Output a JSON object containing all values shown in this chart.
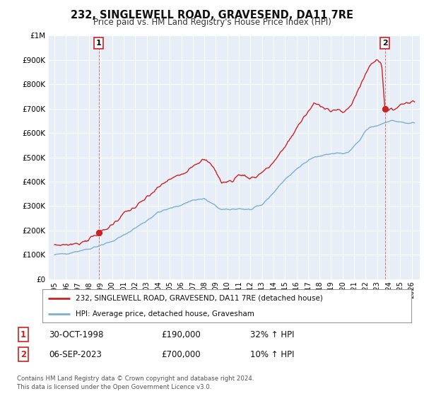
{
  "title": "232, SINGLEWELL ROAD, GRAVESEND, DA11 7RE",
  "subtitle": "Price paid vs. HM Land Registry's House Price Index (HPI)",
  "hpi_color": "#7ab0d4",
  "price_color": "#cc2222",
  "bg_color": "#e8eef8",
  "grid_color": "#ffffff",
  "sale1_x": 1998.83,
  "sale1_y": 190000,
  "sale2_x": 2023.68,
  "sale2_y": 700000,
  "sale1_label": "1",
  "sale2_label": "2",
  "legend_line1": "232, SINGLEWELL ROAD, GRAVESEND, DA11 7RE (detached house)",
  "legend_line2": "HPI: Average price, detached house, Gravesham",
  "table_row1_num": "1",
  "table_row1_date": "30-OCT-1998",
  "table_row1_price": "£190,000",
  "table_row1_hpi": "32% ↑ HPI",
  "table_row2_num": "2",
  "table_row2_date": "06-SEP-2023",
  "table_row2_price": "£700,000",
  "table_row2_hpi": "10% ↑ HPI",
  "footer1": "Contains HM Land Registry data © Crown copyright and database right 2024.",
  "footer2": "This data is licensed under the Open Government Licence v3.0.",
  "yticks": [
    0,
    100000,
    200000,
    300000,
    400000,
    500000,
    600000,
    700000,
    800000,
    900000,
    1000000
  ],
  "ytick_labels": [
    "£0",
    "£100K",
    "£200K",
    "£300K",
    "£400K",
    "£500K",
    "£600K",
    "£700K",
    "£800K",
    "£900K",
    "£1M"
  ],
  "xlim_start": 1994.5,
  "xlim_end": 2026.7,
  "ylim_top": 1000000,
  "hpi_anchors_x": [
    1995.0,
    1996.0,
    1997.0,
    1998.0,
    1999.0,
    2000.0,
    2001.0,
    2002.0,
    2003.0,
    2004.0,
    2005.0,
    2006.0,
    2007.0,
    2008.0,
    2009.0,
    2009.5,
    2010.0,
    2011.0,
    2012.0,
    2013.0,
    2014.0,
    2015.0,
    2015.5,
    2016.5,
    2017.0,
    2017.5,
    2018.0,
    2018.5,
    2019.0,
    2019.5,
    2020.0,
    2020.5,
    2021.0,
    2021.5,
    2022.0,
    2022.5,
    2023.0,
    2023.5,
    2024.0,
    2024.5,
    2025.0,
    2025.5,
    2026.2
  ],
  "hpi_anchors_y": [
    100000,
    105000,
    115000,
    125000,
    140000,
    155000,
    180000,
    210000,
    240000,
    275000,
    290000,
    305000,
    325000,
    330000,
    300000,
    285000,
    285000,
    290000,
    285000,
    305000,
    355000,
    410000,
    430000,
    470000,
    490000,
    500000,
    505000,
    510000,
    515000,
    518000,
    515000,
    520000,
    545000,
    570000,
    610000,
    625000,
    630000,
    640000,
    650000,
    650000,
    645000,
    640000,
    640000
  ],
  "price_anchors_x": [
    1995.0,
    1996.0,
    1997.0,
    1997.5,
    1998.0,
    1998.83,
    1999.0,
    1999.5,
    2000.0,
    2000.5,
    2001.0,
    2002.0,
    2002.5,
    2003.0,
    2003.5,
    2004.0,
    2004.5,
    2005.0,
    2005.5,
    2006.0,
    2006.5,
    2007.0,
    2007.5,
    2008.0,
    2008.5,
    2009.0,
    2009.5,
    2010.0,
    2010.5,
    2011.0,
    2011.5,
    2012.0,
    2012.5,
    2013.0,
    2013.5,
    2014.0,
    2014.5,
    2015.0,
    2015.5,
    2016.0,
    2016.5,
    2017.0,
    2017.5,
    2018.0,
    2018.5,
    2019.0,
    2019.5,
    2020.0,
    2020.5,
    2021.0,
    2021.5,
    2022.0,
    2022.5,
    2023.0,
    2023.4,
    2023.68,
    2024.0,
    2024.5,
    2025.0,
    2025.5,
    2026.2
  ],
  "price_anchors_y": [
    140000,
    142000,
    145000,
    155000,
    165000,
    190000,
    195000,
    205000,
    225000,
    245000,
    270000,
    295000,
    315000,
    335000,
    355000,
    375000,
    395000,
    410000,
    420000,
    432000,
    445000,
    468000,
    480000,
    490000,
    475000,
    445000,
    395000,
    400000,
    405000,
    430000,
    425000,
    415000,
    420000,
    440000,
    455000,
    480000,
    510000,
    545000,
    580000,
    620000,
    655000,
    685000,
    720000,
    715000,
    705000,
    690000,
    695000,
    685000,
    700000,
    740000,
    790000,
    845000,
    885000,
    905000,
    880000,
    700000,
    690000,
    700000,
    715000,
    725000,
    730000
  ]
}
